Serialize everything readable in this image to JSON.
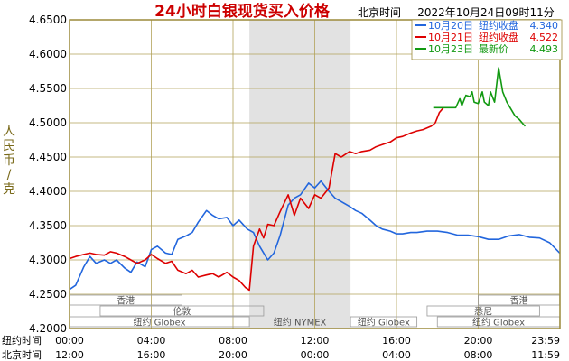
{
  "chart_data": {
    "type": "line",
    "title": "24小时白银现货买入价格",
    "subtitle_label": "北京时间",
    "timestamp": "2022年10月24日09时11分",
    "ylabel_chars": [
      "人",
      "民",
      "币",
      "/",
      "克"
    ],
    "ylim": [
      4.2,
      4.65
    ],
    "y_ticks": [
      "4.6500",
      "4.6000",
      "4.5500",
      "4.5000",
      "4.4500",
      "4.4000",
      "4.3500",
      "4.3000",
      "4.2500",
      "4.2000"
    ],
    "x_ticks_newyork": [
      "00:00",
      "04:00",
      "08:00",
      "12:00",
      "16:00",
      "20:00",
      "23:59"
    ],
    "x_ticks_beijing": [
      "12:00",
      "16:00",
      "20:00",
      "00:00",
      "04:00",
      "08:00",
      "11:59"
    ],
    "x_row_labels": {
      "newyork": "纽约时间",
      "beijing": "北京时间"
    },
    "grid": true,
    "legend_position": "top-right",
    "legend": [
      {
        "date": "10月20日",
        "desc": "纽约收盘",
        "value": "4.340",
        "color": "#2266dd"
      },
      {
        "date": "10月21日",
        "desc": "纽约收盘",
        "value": "4.522",
        "color": "#dd0000"
      },
      {
        "date": "10月23日",
        "desc": "最新价",
        "value": "4.493",
        "color": "#119911"
      }
    ],
    "shaded_session": {
      "label": "纽约 NYMEX",
      "start_hour": 8.8,
      "end_hour": 13.75
    },
    "markets": [
      {
        "label": "香港",
        "row": 0,
        "start": 0.0,
        "end": 5.5
      },
      {
        "label": "伦敦",
        "row": 1,
        "start": 1.5,
        "end": 9.5
      },
      {
        "label": "纽约 Globex",
        "row": 2,
        "start": 0.0,
        "end": 8.8
      },
      {
        "label": "纽约 Globex",
        "row": 2,
        "start": 13.75,
        "end": 17.0
      },
      {
        "label": "香港",
        "row": 0,
        "start": 20.0,
        "end": 23.99
      },
      {
        "label": "悉尼",
        "row": 1,
        "start": 17.5,
        "end": 23.0
      },
      {
        "label": "纽约 Globex",
        "row": 2,
        "start": 18.0,
        "end": 23.99
      }
    ],
    "series": [
      {
        "name": "10月20日",
        "color": "#2266dd",
        "points": [
          [
            0,
            4.257
          ],
          [
            0.3,
            4.263
          ],
          [
            0.7,
            4.29
          ],
          [
            1.0,
            4.305
          ],
          [
            1.3,
            4.295
          ],
          [
            1.7,
            4.3
          ],
          [
            2.0,
            4.295
          ],
          [
            2.3,
            4.3
          ],
          [
            2.7,
            4.288
          ],
          [
            3.0,
            4.282
          ],
          [
            3.3,
            4.297
          ],
          [
            3.7,
            4.29
          ],
          [
            4.0,
            4.315
          ],
          [
            4.3,
            4.32
          ],
          [
            4.7,
            4.31
          ],
          [
            5.0,
            4.308
          ],
          [
            5.3,
            4.33
          ],
          [
            5.7,
            4.335
          ],
          [
            6.0,
            4.34
          ],
          [
            6.3,
            4.355
          ],
          [
            6.7,
            4.372
          ],
          [
            7.0,
            4.365
          ],
          [
            7.3,
            4.36
          ],
          [
            7.7,
            4.362
          ],
          [
            8.0,
            4.35
          ],
          [
            8.3,
            4.358
          ],
          [
            8.7,
            4.345
          ],
          [
            9.0,
            4.34
          ],
          [
            9.3,
            4.32
          ],
          [
            9.7,
            4.3
          ],
          [
            10.0,
            4.31
          ],
          [
            10.3,
            4.335
          ],
          [
            10.7,
            4.38
          ],
          [
            11.0,
            4.39
          ],
          [
            11.3,
            4.395
          ],
          [
            11.7,
            4.412
          ],
          [
            12.0,
            4.405
          ],
          [
            12.3,
            4.415
          ],
          [
            12.7,
            4.4
          ],
          [
            13.0,
            4.39
          ],
          [
            13.3,
            4.385
          ],
          [
            13.7,
            4.378
          ],
          [
            14.0,
            4.372
          ],
          [
            14.3,
            4.368
          ],
          [
            14.7,
            4.358
          ],
          [
            15.0,
            4.35
          ],
          [
            15.3,
            4.345
          ],
          [
            15.7,
            4.342
          ],
          [
            16.0,
            4.338
          ],
          [
            16.3,
            4.338
          ],
          [
            16.7,
            4.34
          ],
          [
            17.0,
            4.34
          ],
          [
            17.5,
            4.342
          ],
          [
            18.0,
            4.342
          ],
          [
            18.5,
            4.34
          ],
          [
            19.0,
            4.336
          ],
          [
            19.5,
            4.336
          ],
          [
            20.0,
            4.334
          ],
          [
            20.5,
            4.33
          ],
          [
            21.0,
            4.33
          ],
          [
            21.5,
            4.335
          ],
          [
            22.0,
            4.337
          ],
          [
            22.5,
            4.333
          ],
          [
            23.0,
            4.332
          ],
          [
            23.5,
            4.325
          ],
          [
            23.99,
            4.31
          ]
        ]
      },
      {
        "name": "10月21日",
        "color": "#dd0000",
        "points": [
          [
            0,
            4.302
          ],
          [
            0.3,
            4.305
          ],
          [
            0.7,
            4.308
          ],
          [
            1.0,
            4.31
          ],
          [
            1.3,
            4.308
          ],
          [
            1.7,
            4.307
          ],
          [
            2.0,
            4.312
          ],
          [
            2.3,
            4.31
          ],
          [
            2.7,
            4.305
          ],
          [
            3.0,
            4.3
          ],
          [
            3.3,
            4.295
          ],
          [
            3.7,
            4.3
          ],
          [
            4.0,
            4.308
          ],
          [
            4.3,
            4.302
          ],
          [
            4.7,
            4.295
          ],
          [
            5.0,
            4.298
          ],
          [
            5.3,
            4.285
          ],
          [
            5.7,
            4.28
          ],
          [
            6.0,
            4.285
          ],
          [
            6.3,
            4.275
          ],
          [
            6.7,
            4.278
          ],
          [
            7.0,
            4.28
          ],
          [
            7.3,
            4.275
          ],
          [
            7.7,
            4.282
          ],
          [
            8.0,
            4.275
          ],
          [
            8.3,
            4.27
          ],
          [
            8.6,
            4.26
          ],
          [
            8.8,
            4.256
          ],
          [
            9.0,
            4.32
          ],
          [
            9.3,
            4.345
          ],
          [
            9.5,
            4.332
          ],
          [
            9.7,
            4.352
          ],
          [
            10.0,
            4.35
          ],
          [
            10.3,
            4.37
          ],
          [
            10.7,
            4.395
          ],
          [
            11.0,
            4.365
          ],
          [
            11.3,
            4.39
          ],
          [
            11.7,
            4.375
          ],
          [
            12.0,
            4.395
          ],
          [
            12.3,
            4.39
          ],
          [
            12.7,
            4.405
          ],
          [
            13.0,
            4.455
          ],
          [
            13.3,
            4.45
          ],
          [
            13.7,
            4.458
          ],
          [
            14.0,
            4.455
          ],
          [
            14.3,
            4.458
          ],
          [
            14.7,
            4.46
          ],
          [
            15.0,
            4.465
          ],
          [
            15.3,
            4.468
          ],
          [
            15.7,
            4.472
          ],
          [
            16.0,
            4.478
          ],
          [
            16.3,
            4.48
          ],
          [
            16.7,
            4.485
          ],
          [
            17.0,
            4.488
          ],
          [
            17.3,
            4.49
          ],
          [
            17.7,
            4.495
          ],
          [
            17.9,
            4.5
          ],
          [
            18.1,
            4.515
          ],
          [
            18.3,
            4.522
          ]
        ]
      },
      {
        "name": "10月23日",
        "color": "#119911",
        "points": [
          [
            17.8,
            4.522
          ],
          [
            18.2,
            4.522
          ],
          [
            18.6,
            4.522
          ],
          [
            18.9,
            4.522
          ],
          [
            19.1,
            4.535
          ],
          [
            19.2,
            4.525
          ],
          [
            19.4,
            4.54
          ],
          [
            19.6,
            4.538
          ],
          [
            19.7,
            4.545
          ],
          [
            19.8,
            4.53
          ],
          [
            20.0,
            4.528
          ],
          [
            20.2,
            4.545
          ],
          [
            20.3,
            4.53
          ],
          [
            20.5,
            4.525
          ],
          [
            20.6,
            4.545
          ],
          [
            20.8,
            4.53
          ],
          [
            21.0,
            4.58
          ],
          [
            21.2,
            4.545
          ],
          [
            21.4,
            4.53
          ],
          [
            21.6,
            4.52
          ],
          [
            21.8,
            4.51
          ],
          [
            22.0,
            4.505
          ],
          [
            22.2,
            4.498
          ],
          [
            22.3,
            4.495
          ]
        ]
      }
    ]
  }
}
